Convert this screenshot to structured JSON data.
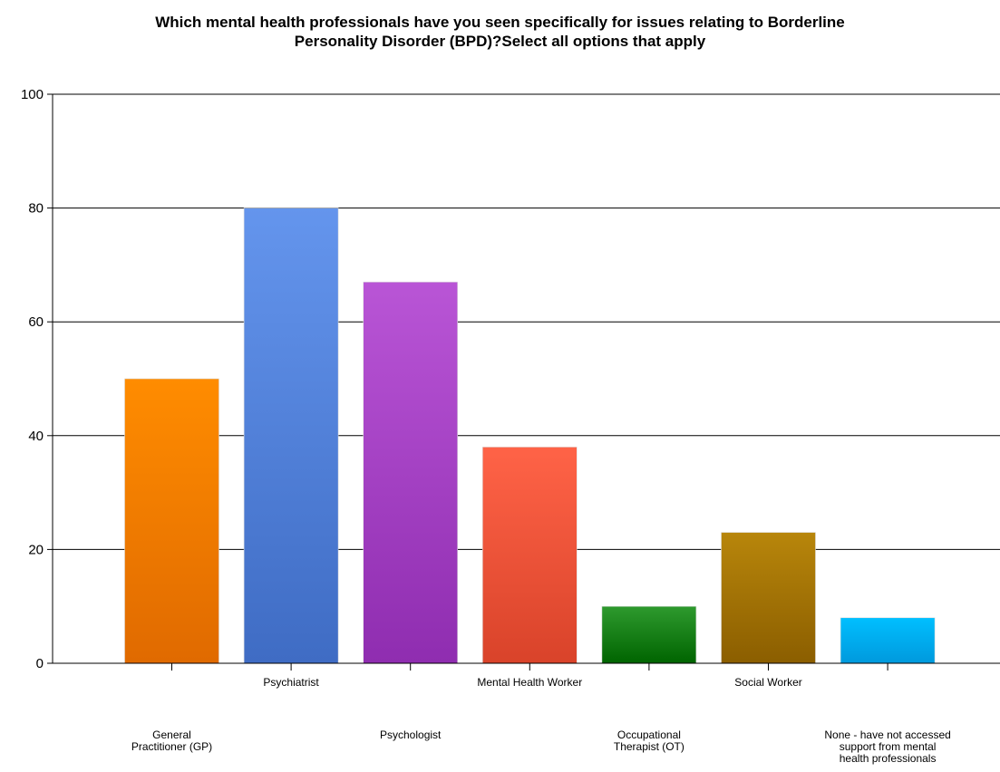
{
  "chart_data": {
    "type": "bar",
    "title_line1": "Which mental health professionals have you seen specifically for issues relating to Borderline",
    "title_line2": "Personality Disorder (BPD)?Select all options that apply",
    "xlabel": "",
    "ylabel": "",
    "ylim": [
      0,
      100
    ],
    "yticks": [
      0,
      20,
      40,
      60,
      80,
      100
    ],
    "grid": true,
    "categories": [
      "General\nPractitioner (GP)",
      "Psychiatrist",
      "Psychologist",
      "Mental Health Worker",
      "Occupational\nTherapist (OT)",
      "Social Worker",
      "None - have not accessed\nsupport from mental\nhealth professionals"
    ],
    "values": [
      50,
      80,
      67,
      38,
      10,
      23,
      8
    ],
    "colors": [
      [
        "#ff8c00",
        "#e06a00"
      ],
      [
        "#6495ed",
        "#3f6cc4"
      ],
      [
        "#b955d6",
        "#8f2db0"
      ],
      [
        "#ff6347",
        "#d9432a"
      ],
      [
        "#2e9a2e",
        "#006400"
      ],
      [
        "#b8860b",
        "#8b5e00"
      ],
      [
        "#00bfff",
        "#0099dd"
      ]
    ]
  }
}
